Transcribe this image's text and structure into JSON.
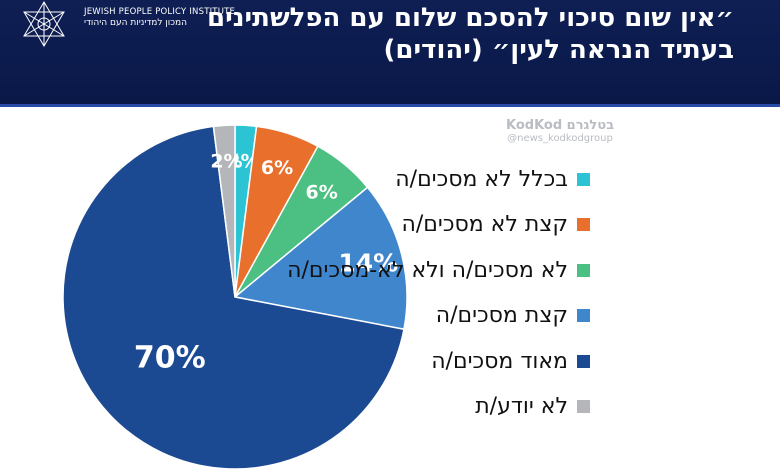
{
  "header": {
    "title_line1": "״אין שום סיכוי להסכם שלום עם הפלשתינים",
    "title_line2": "בעתיד הנראה לעין״ (יהודים)",
    "logo_en": "JEWISH PEOPLE POLICY INSTITUTE",
    "logo_he": "המכון למדיניות העם היהודי"
  },
  "watermark": {
    "main": "בטלגרם KodKod",
    "sub": "@news_kodkodgroup"
  },
  "chart_data": {
    "type": "pie",
    "title": "״אין שום סיכוי להסכם שלום עם הפלשתינים בעתיד הנראה לעין״ (יהודים)",
    "legend_position": "right",
    "slices": [
      {
        "label": "בכלל לא מסכים/ה",
        "value": 2,
        "display": "2%",
        "color": "#2cc4d4"
      },
      {
        "label": "קצת לא מסכים/ה",
        "value": 6,
        "display": "6%",
        "color": "#e8702c"
      },
      {
        "label": "לא מסכים/ה ולא לא-מסכים/ה",
        "value": 6,
        "display": "6%",
        "color": "#4cbf82"
      },
      {
        "label": "קצת מסכים/ה",
        "value": 14,
        "display": "14%",
        "color": "#3f86cc"
      },
      {
        "label": "מאוד מסכים/ה",
        "value": 70,
        "display": "70%",
        "color": "#1c4a92"
      },
      {
        "label": "לא יודע/ת",
        "value": 2,
        "display": "2%",
        "color": "#b4b6b9"
      }
    ]
  }
}
